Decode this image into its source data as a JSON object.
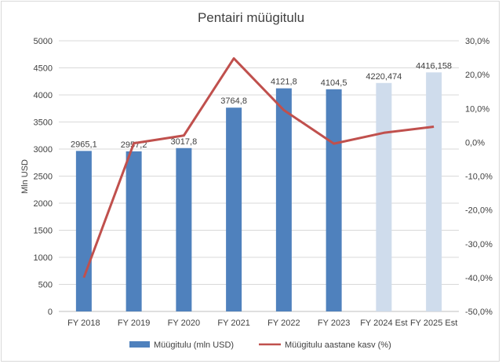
{
  "chart_data": {
    "type": "bar",
    "title": "Pentairi müügitulu",
    "ylabel": "Mln USD",
    "y2label": "",
    "categories": [
      "FY 2018",
      "FY 2019",
      "FY 2020",
      "FY 2021",
      "FY 2022",
      "FY 2023",
      "FY 2024 Est",
      "FY 2025 Est"
    ],
    "ylim": [
      0,
      5000
    ],
    "yticks": [
      "0",
      "500",
      "1000",
      "1500",
      "2000",
      "2500",
      "3000",
      "3500",
      "4000",
      "4500",
      "5000"
    ],
    "y2lim": [
      -50,
      30
    ],
    "y2ticks": [
      "-50,0%",
      "-40,0%",
      "-30,0%",
      "-20,0%",
      "-10,0%",
      "0,0%",
      "10,0%",
      "20,0%",
      "30,0%"
    ],
    "series": [
      {
        "name": "Müügitulu (mln USD)",
        "type": "bar",
        "axis": "left",
        "values": [
          2965.1,
          2957.2,
          3017.8,
          3764.8,
          4121.8,
          4104.5,
          4220.474,
          4416.158
        ],
        "labels": [
          "2965,1",
          "2957,2",
          "3017,8",
          "3764,8",
          "4121,8",
          "4104,5",
          "4220,474",
          "4416,158"
        ],
        "colors": [
          "#4f81bd",
          "#4f81bd",
          "#4f81bd",
          "#4f81bd",
          "#4f81bd",
          "#4f81bd",
          "#cfdcec",
          "#cfdcec"
        ]
      },
      {
        "name": "Müügitulu aastane kasv (%)",
        "type": "line",
        "axis": "right",
        "color": "#c0504d",
        "values": [
          -40.0,
          -0.3,
          2.0,
          24.8,
          9.5,
          -0.4,
          2.8,
          4.6
        ]
      }
    ],
    "grid": true,
    "legend_position": "bottom"
  }
}
